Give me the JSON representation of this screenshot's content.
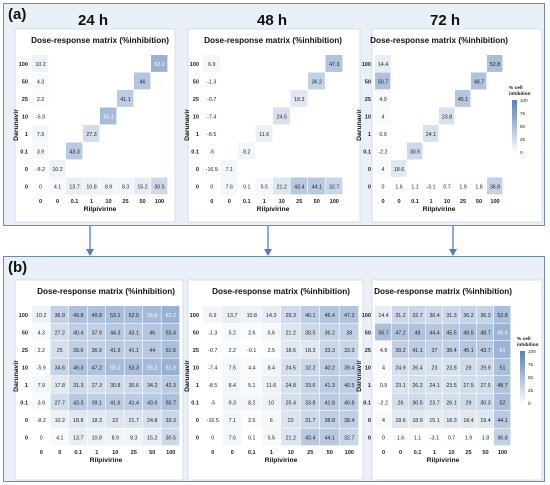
{
  "panel_a": {
    "label": "(a)",
    "time_labels": [
      "24 h",
      "48 h",
      "72 h"
    ]
  },
  "panel_b": {
    "label": "(b)"
  },
  "colors": {
    "low": "#ffffff",
    "high": "#5b83b8",
    "panel_border": "#6f8db3",
    "panel_bg": "#e9f0f8",
    "arrow": "#4f7fc1"
  },
  "chart_data": [
    {
      "type": "heatmap",
      "title": "Dose-response matrix (%inhibition)",
      "xlabel": "Rilpivirine",
      "ylabel": "Darunavir",
      "x_ticks": [
        "0",
        "0",
        "0.1",
        "1",
        "10",
        "25",
        "50",
        "100"
      ],
      "y_ticks": [
        "100",
        "50",
        "25",
        "10",
        "1",
        "0.1",
        "0",
        "0"
      ],
      "cells": [
        [
          "10.2",
          "",
          "",
          "",
          "",
          "",
          "",
          "62.2"
        ],
        [
          "4.3",
          "",
          "",
          "",
          "",
          "",
          "46",
          ""
        ],
        [
          "2.2",
          "",
          "",
          "",
          "",
          "41.1",
          "",
          ""
        ],
        [
          "-5.9",
          "",
          "",
          "",
          "55.1",
          "",
          "",
          ""
        ],
        [
          "7.9",
          "",
          "",
          "27.3",
          "",
          "",
          "",
          ""
        ],
        [
          "3.9",
          "",
          "43.3",
          "",
          "",
          "",
          "",
          ""
        ],
        [
          "-8.2",
          "10.2",
          "",
          "",
          "",
          "",
          "",
          ""
        ],
        [
          "0",
          "4.1",
          "13.7",
          "10.8",
          "8.9",
          "8.3",
          "15.2",
          "30.5"
        ]
      ]
    },
    {
      "type": "heatmap",
      "title": "Dose-response matrix (%inhibition)",
      "xlabel": "Rilpivirine",
      "ylabel": "Darunavir",
      "x_ticks": [
        "0",
        "0",
        "0.1",
        "1",
        "10",
        "25",
        "50",
        "100"
      ],
      "y_ticks": [
        "100",
        "50",
        "25",
        "10",
        "1",
        "0.1",
        "0",
        "0"
      ],
      "cells": [
        [
          "6.9",
          "",
          "",
          "",
          "",
          "",
          "",
          "47.3"
        ],
        [
          "-1.3",
          "",
          "",
          "",
          "",
          "",
          "36.2",
          ""
        ],
        [
          "-0.7",
          "",
          "",
          "",
          "",
          "18.3",
          "",
          ""
        ],
        [
          "-7.4",
          "",
          "",
          "",
          "24.5",
          "",
          "",
          ""
        ],
        [
          "-8.5",
          "",
          "",
          "11.6",
          "",
          "",
          "",
          ""
        ],
        [
          "-5",
          "",
          "8.2",
          "",
          "",
          "",
          "",
          ""
        ],
        [
          "-16.5",
          "7.1",
          "",
          "",
          "",
          "",
          "",
          ""
        ],
        [
          "0",
          "7.6",
          "0.1",
          "5.5",
          "21.2",
          "43.4",
          "44.1",
          "32.7"
        ]
      ]
    },
    {
      "type": "heatmap",
      "title": "Dose-response matrix (%inhibition)",
      "xlabel": "Rilpivirine",
      "ylabel": "Darunavir",
      "x_ticks": [
        "0",
        "0",
        "0.1",
        "1",
        "10",
        "25",
        "50",
        "100"
      ],
      "y_ticks": [
        "100",
        "50",
        "25",
        "10",
        "1",
        "0.1",
        "0",
        "0"
      ],
      "cells": [
        [
          "14.4",
          "",
          "",
          "",
          "",
          "",
          "",
          "52.8"
        ],
        [
          "50.7",
          "",
          "",
          "",
          "",
          "",
          "48.7",
          ""
        ],
        [
          "4.9",
          "",
          "",
          "",
          "",
          "45.1",
          "",
          ""
        ],
        [
          "4",
          "",
          "",
          "",
          "23.8",
          "",
          "",
          ""
        ],
        [
          "0.9",
          "",
          "",
          "24.1",
          "",
          "",
          "",
          ""
        ],
        [
          "-2.2",
          "",
          "30.5",
          "",
          "",
          "",
          "",
          ""
        ],
        [
          "4",
          "18.6",
          "",
          "",
          "",
          "",
          "",
          ""
        ],
        [
          "0",
          "1.6",
          "1.1",
          "-3.1",
          "0.7",
          "1.9",
          "1.8",
          "36.8"
        ]
      ],
      "legend": {
        "title": "% cell inhibition",
        "ticks": [
          "100",
          "75",
          "50",
          "25",
          "0"
        ],
        "placement": "right"
      }
    },
    {
      "type": "heatmap",
      "title": "Dose-response matrix (%inhibition)",
      "xlabel": "Rilpivirine",
      "ylabel": "Darunavir",
      "x_ticks": [
        "0",
        "0",
        "0.1",
        "1",
        "10",
        "25",
        "50",
        "100"
      ],
      "y_ticks": [
        "100",
        "50",
        "25",
        "10",
        "1",
        "0.1",
        "0",
        "0"
      ],
      "cells": [
        [
          "10.2",
          "36.9",
          "49.8",
          "49.8",
          "53.1",
          "52.5",
          "55.6",
          "62.2"
        ],
        [
          "4.3",
          "27.2",
          "40.4",
          "37.9",
          "44.3",
          "43.1",
          "46",
          "53.4"
        ],
        [
          "2.2",
          "25",
          "39.6",
          "36.9",
          "41.9",
          "41.1",
          "44",
          "51.6"
        ],
        [
          "-5.9",
          "34.6",
          "49.3",
          "47.2",
          "55.1",
          "53.3",
          "55.2",
          "61.9"
        ],
        [
          "7.9",
          "17.8",
          "31.3",
          "27.3",
          "30.8",
          "30.6",
          "34.2",
          "42.3"
        ],
        [
          "3.9",
          "27.7",
          "43.3",
          "39.1",
          "41.6",
          "41.4",
          "43.6",
          "50.7"
        ],
        [
          "-8.2",
          "10.2",
          "18.8",
          "18.3",
          "22",
          "21.7",
          "24.8",
          "33.3"
        ],
        [
          "0",
          "4.1",
          "13.7",
          "10.8",
          "8.9",
          "8.3",
          "15.2",
          "30.5"
        ]
      ]
    },
    {
      "type": "heatmap",
      "title": "Dose-response matrix (%inhibition)",
      "xlabel": "Rilpivirine",
      "ylabel": "Darunavir",
      "x_ticks": [
        "0",
        "0",
        "0.1",
        "1",
        "10",
        "25",
        "50",
        "100"
      ],
      "y_ticks": [
        "100",
        "50",
        "25",
        "10",
        "1",
        "0.1",
        "0",
        "0"
      ],
      "cells": [
        [
          "6.9",
          "13.7",
          "10.8",
          "14.3",
          "29.3",
          "40.1",
          "46.4",
          "47.3"
        ],
        [
          "-1.3",
          "5.2",
          "2.6",
          "5.6",
          "21.2",
          "30.5",
          "36.2",
          "38"
        ],
        [
          "-0.7",
          "2.2",
          "-0.1",
          "2.5",
          "18.6",
          "18.3",
          "33.3",
          "33.3"
        ],
        [
          "-7.4",
          "7.5",
          "4.4",
          "8.4",
          "24.5",
          "32.2",
          "40.2",
          "39.4"
        ],
        [
          "-8.5",
          "8.4",
          "5.1",
          "11.6",
          "24.8",
          "33.6",
          "41.3",
          "40.5"
        ],
        [
          "-5",
          "9.3",
          "8.2",
          "10",
          "25.4",
          "33.8",
          "41.8",
          "40.8"
        ],
        [
          "-16.5",
          "7.1",
          "2.5",
          "6",
          "22",
          "31.7",
          "38.8",
          "38.4"
        ],
        [
          "0",
          "7.6",
          "0.1",
          "5.5",
          "21.2",
          "43.4",
          "44.1",
          "32.7"
        ]
      ]
    },
    {
      "type": "heatmap",
      "title": "Dose-response matrix (%inhibition)",
      "xlabel": "Rilpivirine",
      "ylabel": "Darunavir",
      "x_ticks": [
        "0",
        "0",
        "0.1",
        "1",
        "10",
        "25",
        "50",
        "100"
      ],
      "y_ticks": [
        "100",
        "50",
        "25",
        "10",
        "1",
        "0.1",
        "0",
        "0"
      ],
      "cells": [
        [
          "14.4",
          "31.2",
          "32.7",
          "30.4",
          "31.3",
          "36.2",
          "36.3",
          "52.8"
        ],
        [
          "50.7",
          "47.2",
          "48",
          "44.4",
          "45.5",
          "49.5",
          "48.7",
          "60.6"
        ],
        [
          "4.9",
          "39.2",
          "41.1",
          "37",
          "38.4",
          "45.1",
          "43.7",
          "61"
        ],
        [
          "4",
          "24.9",
          "26.4",
          "23",
          "23.8",
          "29",
          "29.9",
          "51"
        ],
        [
          "0.9",
          "23.1",
          "26.2",
          "24.1",
          "23.5",
          "27.5",
          "27.5",
          "48.7"
        ],
        [
          "-2.2",
          "26",
          "30.5",
          "23.7",
          "26.1",
          "29",
          "30.3",
          "52"
        ],
        [
          "4",
          "18.6",
          "18.9",
          "15.1",
          "18.3",
          "18.4",
          "19.4",
          "44.1"
        ],
        [
          "0",
          "1.6",
          "1.1",
          "-3.1",
          "0.7",
          "1.9",
          "1.8",
          "36.8"
        ]
      ],
      "legend": {
        "title": "% cell inhibition",
        "ticks": [
          "100",
          "75",
          "50",
          "25",
          "0"
        ],
        "placement": "right"
      }
    }
  ]
}
